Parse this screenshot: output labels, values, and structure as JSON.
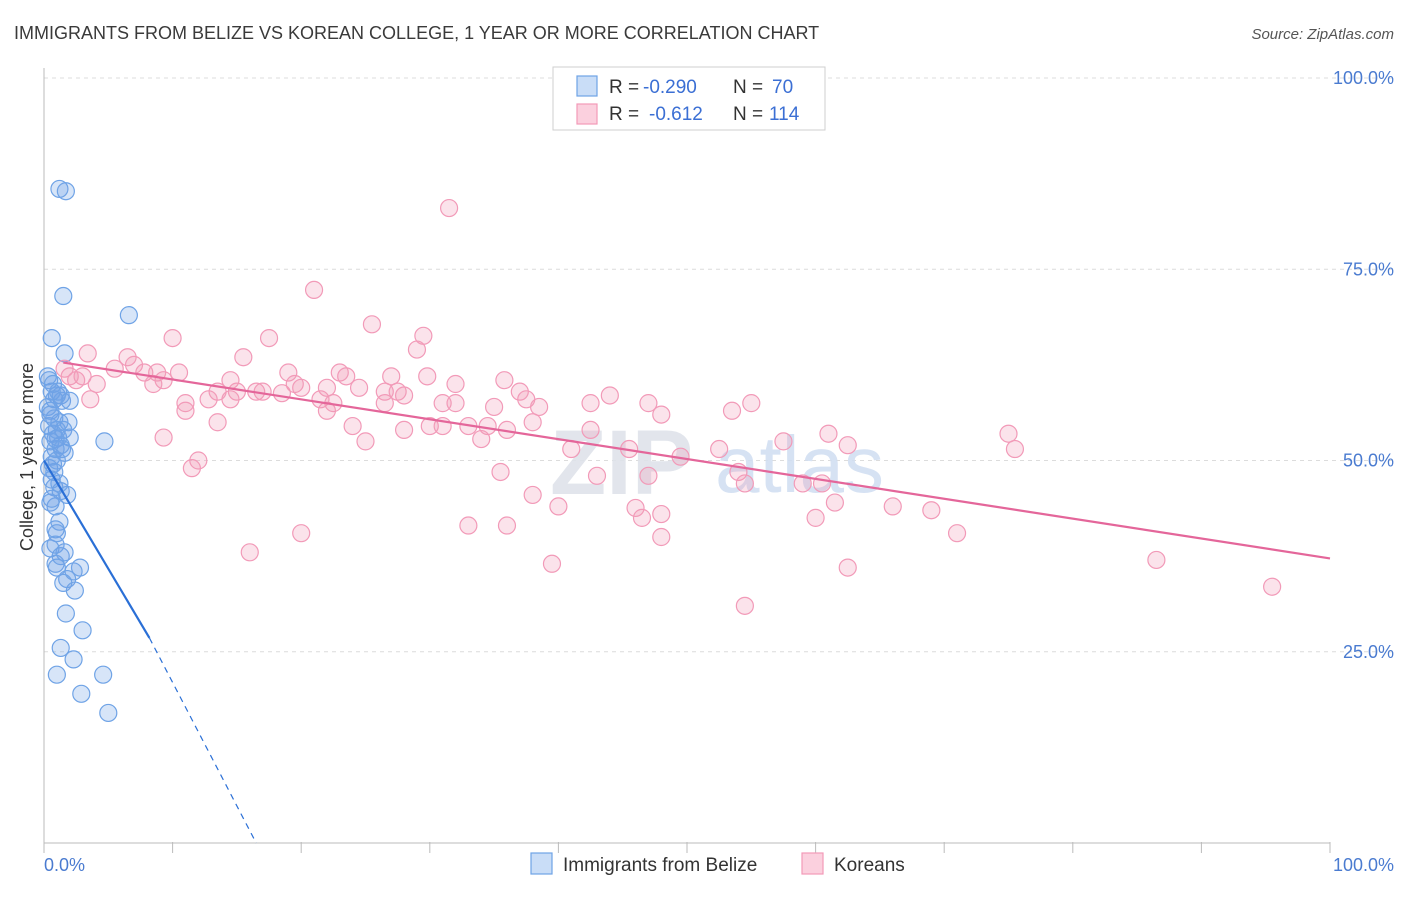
{
  "title": "IMMIGRANTS FROM BELIZE VS KOREAN COLLEGE, 1 YEAR OR MORE CORRELATION CHART",
  "source": "Source: ZipAtlas.com",
  "watermark": {
    "zip": "ZIP",
    "atlas": "atlas"
  },
  "colors": {
    "blue": "#6fa3e6",
    "blue_line": "#2a6fd6",
    "pink": "#f29ab8",
    "pink_line": "#e4669a",
    "tick": "#4a7bd0",
    "grid": "#dcdcdc"
  },
  "legend": {
    "rows": [
      {
        "r_label": "R =",
        "r_value": "-0.290",
        "n_label": "N =",
        "n_value": "70"
      },
      {
        "r_label": "R =",
        "r_value": "-0.612",
        "n_label": "N =",
        "n_value": "114"
      }
    ]
  },
  "bottom_legend": [
    "Immigrants from Belize",
    "Koreans"
  ],
  "chart_data": {
    "type": "scatter",
    "title": "IMMIGRANTS FROM BELIZE VS KOREAN COLLEGE, 1 YEAR OR MORE CORRELATION CHART",
    "xlabel": "",
    "ylabel": "College, 1 year or more",
    "xlim": [
      0,
      100
    ],
    "ylim": [
      0,
      100
    ],
    "x_tick_labels": [
      {
        "value": 0,
        "label": "0.0%"
      },
      {
        "value": 100,
        "label": "100.0%"
      }
    ],
    "y_tick_labels": [
      {
        "value": 100,
        "label": "100.0%"
      },
      {
        "value": 75,
        "label": "75.0%"
      },
      {
        "value": 50,
        "label": "50.0%"
      },
      {
        "value": 25,
        "label": "25.0%"
      }
    ],
    "series": [
      {
        "name": "Immigrants from Belize",
        "color": "#6fa3e6",
        "r": -0.29,
        "n": 70,
        "trend": {
          "x0": 0,
          "y0": 50.0,
          "x1": 8.2,
          "y1": 26.8,
          "dash_to_x": 16.5,
          "dash_to_y": 0
        },
        "points": [
          [
            1.2,
            85.5
          ],
          [
            1.7,
            85.2
          ],
          [
            1.5,
            71.5
          ],
          [
            6.6,
            69.0
          ],
          [
            0.6,
            66.0
          ],
          [
            1.6,
            64.0
          ],
          [
            0.4,
            60.5
          ],
          [
            0.6,
            59.0
          ],
          [
            1.0,
            58.5
          ],
          [
            1.3,
            58.5
          ],
          [
            0.8,
            58.0
          ],
          [
            1.4,
            57.8
          ],
          [
            2.0,
            57.8
          ],
          [
            0.3,
            57.0
          ],
          [
            0.5,
            56.5
          ],
          [
            0.8,
            55.5
          ],
          [
            1.2,
            55.0
          ],
          [
            1.9,
            55.0
          ],
          [
            0.4,
            54.5
          ],
          [
            1.0,
            54.0
          ],
          [
            1.5,
            54.0
          ],
          [
            0.7,
            53.5
          ],
          [
            1.1,
            53.0
          ],
          [
            2.0,
            53.0
          ],
          [
            0.5,
            52.5
          ],
          [
            1.3,
            52.0
          ],
          [
            4.7,
            52.5
          ],
          [
            0.9,
            51.5
          ],
          [
            1.6,
            51.0
          ],
          [
            0.6,
            50.5
          ],
          [
            1.0,
            50.0
          ],
          [
            0.4,
            49.0
          ],
          [
            0.8,
            48.5
          ],
          [
            0.6,
            47.5
          ],
          [
            0.8,
            46.5
          ],
          [
            1.3,
            46.0
          ],
          [
            1.8,
            45.5
          ],
          [
            0.6,
            45.0
          ],
          [
            0.9,
            44.0
          ],
          [
            1.2,
            42.0
          ],
          [
            0.9,
            41.0
          ],
          [
            1.0,
            40.5
          ],
          [
            0.5,
            38.5
          ],
          [
            1.3,
            37.5
          ],
          [
            0.9,
            36.5
          ],
          [
            1.0,
            36.0
          ],
          [
            2.3,
            35.5
          ],
          [
            2.8,
            36.0
          ],
          [
            1.8,
            34.5
          ],
          [
            1.5,
            34.0
          ],
          [
            2.4,
            33.0
          ],
          [
            1.7,
            30.0
          ],
          [
            3.0,
            27.8
          ],
          [
            1.3,
            25.5
          ],
          [
            2.3,
            24.0
          ],
          [
            1.0,
            22.0
          ],
          [
            4.6,
            22.0
          ],
          [
            2.9,
            19.5
          ],
          [
            5.0,
            17.0
          ],
          [
            0.3,
            61.0
          ],
          [
            0.7,
            60.0
          ],
          [
            1.1,
            59.0
          ],
          [
            0.5,
            56.0
          ],
          [
            0.9,
            52.8
          ],
          [
            1.4,
            51.5
          ],
          [
            0.7,
            49.5
          ],
          [
            1.2,
            47.0
          ],
          [
            0.5,
            44.5
          ],
          [
            0.9,
            39.0
          ],
          [
            1.6,
            38.0
          ]
        ]
      },
      {
        "name": "Koreans",
        "color": "#f29ab8",
        "r": -0.612,
        "n": 114,
        "trend": {
          "x0": 1.5,
          "y0": 62.8,
          "x1": 100,
          "y1": 37.2
        },
        "points": [
          [
            31.5,
            83.0
          ],
          [
            21.0,
            72.3
          ],
          [
            10.0,
            66.0
          ],
          [
            17.5,
            66.0
          ],
          [
            25.5,
            67.8
          ],
          [
            29.5,
            66.3
          ],
          [
            29.0,
            64.5
          ],
          [
            3.4,
            64.0
          ],
          [
            15.5,
            63.5
          ],
          [
            6.5,
            63.5
          ],
          [
            7.0,
            62.5
          ],
          [
            5.5,
            62.0
          ],
          [
            1.6,
            62.0
          ],
          [
            10.5,
            61.5
          ],
          [
            7.8,
            61.5
          ],
          [
            8.8,
            61.5
          ],
          [
            2.0,
            61.0
          ],
          [
            3.0,
            61.0
          ],
          [
            19.0,
            61.5
          ],
          [
            23.0,
            61.5
          ],
          [
            23.5,
            61.0
          ],
          [
            27.0,
            61.0
          ],
          [
            29.8,
            61.0
          ],
          [
            2.5,
            60.5
          ],
          [
            4.1,
            60.0
          ],
          [
            8.5,
            60.0
          ],
          [
            9.3,
            60.5
          ],
          [
            14.5,
            60.5
          ],
          [
            19.5,
            60.0
          ],
          [
            20.0,
            59.5
          ],
          [
            22.0,
            59.5
          ],
          [
            24.5,
            59.5
          ],
          [
            26.5,
            59.0
          ],
          [
            27.5,
            59.0
          ],
          [
            32.0,
            60.0
          ],
          [
            35.8,
            60.5
          ],
          [
            13.5,
            59.0
          ],
          [
            15.0,
            59.0
          ],
          [
            16.5,
            59.0
          ],
          [
            17.0,
            59.0
          ],
          [
            18.5,
            58.8
          ],
          [
            28.0,
            58.5
          ],
          [
            37.0,
            59.0
          ],
          [
            3.6,
            58.0
          ],
          [
            12.8,
            58.0
          ],
          [
            14.5,
            58.0
          ],
          [
            21.5,
            58.0
          ],
          [
            11.0,
            57.5
          ],
          [
            22.5,
            57.5
          ],
          [
            26.5,
            57.5
          ],
          [
            31.0,
            57.5
          ],
          [
            32.0,
            57.5
          ],
          [
            35.0,
            57.0
          ],
          [
            37.5,
            58.0
          ],
          [
            42.5,
            57.5
          ],
          [
            11.0,
            56.5
          ],
          [
            22.0,
            56.5
          ],
          [
            38.5,
            57.0
          ],
          [
            44.0,
            58.5
          ],
          [
            47.0,
            57.5
          ],
          [
            48.0,
            56.0
          ],
          [
            53.5,
            56.5
          ],
          [
            55.0,
            57.5
          ],
          [
            38.0,
            55.0
          ],
          [
            36.0,
            54.0
          ],
          [
            13.5,
            55.0
          ],
          [
            24.0,
            54.5
          ],
          [
            28.0,
            54.0
          ],
          [
            30.0,
            54.5
          ],
          [
            31.0,
            54.5
          ],
          [
            33.0,
            54.5
          ],
          [
            34.5,
            54.5
          ],
          [
            42.5,
            54.0
          ],
          [
            9.3,
            53.0
          ],
          [
            25.0,
            52.5
          ],
          [
            34.0,
            52.8
          ],
          [
            52.5,
            51.5
          ],
          [
            57.5,
            52.5
          ],
          [
            61.0,
            53.5
          ],
          [
            62.5,
            52.0
          ],
          [
            75.0,
            53.5
          ],
          [
            41.0,
            51.5
          ],
          [
            45.5,
            51.5
          ],
          [
            49.5,
            50.5
          ],
          [
            12.0,
            50.0
          ],
          [
            11.5,
            49.0
          ],
          [
            35.5,
            48.5
          ],
          [
            43.0,
            48.0
          ],
          [
            47.0,
            48.0
          ],
          [
            54.0,
            48.5
          ],
          [
            59.0,
            47.0
          ],
          [
            54.5,
            47.0
          ],
          [
            60.5,
            47.0
          ],
          [
            38.0,
            45.5
          ],
          [
            40.0,
            44.0
          ],
          [
            46.0,
            43.8
          ],
          [
            61.5,
            44.5
          ],
          [
            66.0,
            44.0
          ],
          [
            69.0,
            43.5
          ],
          [
            46.5,
            42.5
          ],
          [
            48.0,
            43.0
          ],
          [
            60.0,
            42.5
          ],
          [
            36.0,
            41.5
          ],
          [
            33.0,
            41.5
          ],
          [
            48.0,
            40.0
          ],
          [
            20.0,
            40.5
          ],
          [
            16.0,
            38.0
          ],
          [
            71.0,
            40.5
          ],
          [
            39.5,
            36.5
          ],
          [
            62.5,
            36.0
          ],
          [
            86.5,
            37.0
          ],
          [
            95.5,
            33.5
          ],
          [
            54.5,
            31.0
          ],
          [
            75.5,
            51.5
          ]
        ]
      }
    ]
  }
}
